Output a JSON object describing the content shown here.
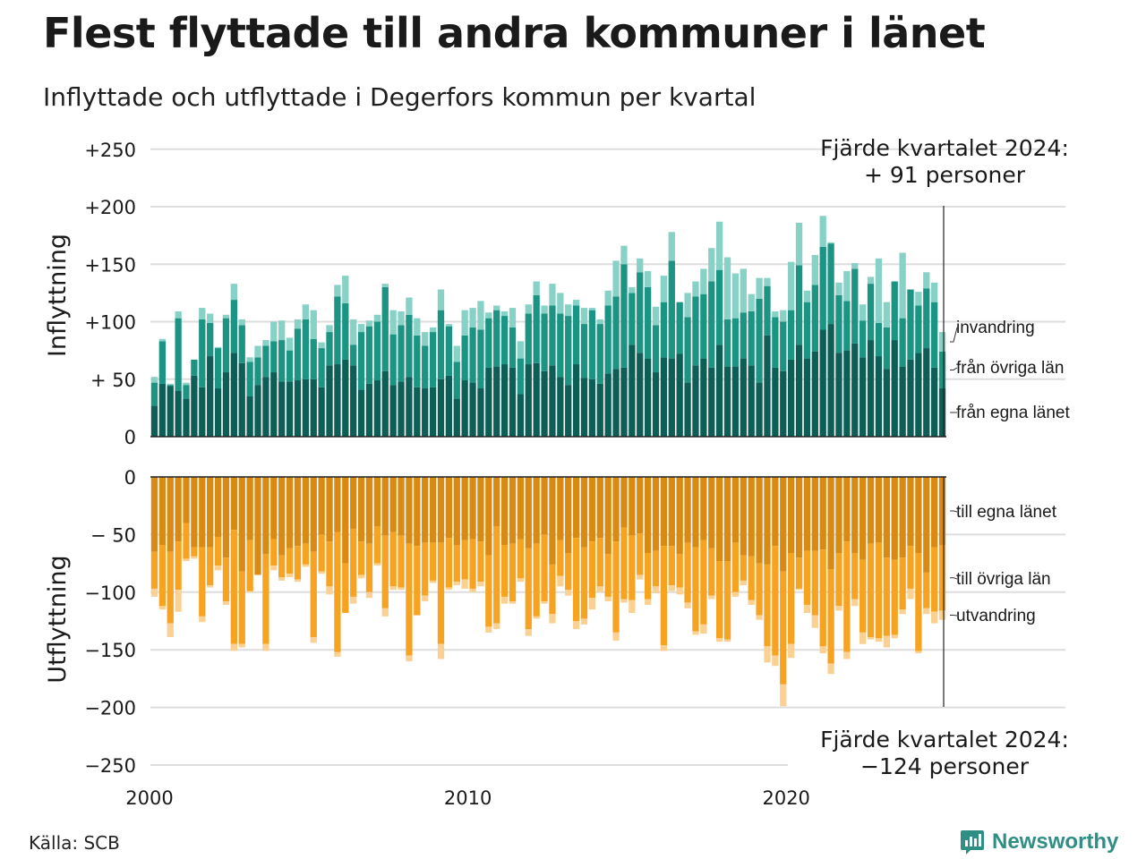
{
  "title": "Flest flyttade till andra kommuner i länet",
  "subtitle": "Inflyttade och utflyttade i Degerfors kommun per kvartal",
  "source": "Källa: SCB",
  "brand": "Newsworthy",
  "colors": {
    "in_own_county": "#0d5e57",
    "in_other_counties": "#1b9484",
    "in_immigration": "#88d1c6",
    "out_own_county": "#d98a12",
    "out_other_counties": "#f7a322",
    "out_emigration": "#fad192",
    "grid": "#dddddd",
    "brand": "#2f8f85"
  },
  "chart_data": {
    "type": "bar",
    "stacked": true,
    "x_start": "2000 Q1",
    "x_end": "2024 Q4",
    "x_ticks": [
      "2000",
      "2010",
      "2020"
    ],
    "top_panel": {
      "ylabel": "Inflyttning",
      "y_ticks": [
        "+250",
        "+200",
        "+150",
        "+100",
        "+ 50",
        "0"
      ],
      "ylim": [
        0,
        250
      ],
      "annotation_line1": "Fjärde kvartalet 2024:",
      "annotation_line2": "+ 91 personer",
      "series": [
        {
          "name": "från egna länet",
          "values": [
            27,
            46,
            44,
            40,
            33,
            53,
            43,
            70,
            42,
            56,
            73,
            64,
            35,
            45,
            52,
            56,
            48,
            48,
            49,
            50,
            50,
            43,
            62,
            63,
            67,
            62,
            41,
            46,
            49,
            57,
            45,
            48,
            52,
            43,
            42,
            43,
            50,
            53,
            33,
            49,
            47,
            42,
            60,
            61,
            63,
            60,
            37,
            63,
            64,
            57,
            62,
            52,
            45,
            63,
            51,
            50,
            46,
            55,
            59,
            60,
            80,
            73,
            68,
            56,
            69,
            68,
            72,
            47,
            62,
            68,
            60,
            80,
            61,
            61,
            68,
            62,
            47,
            88,
            60,
            57,
            67,
            80,
            68,
            74,
            93,
            98,
            73,
            75,
            81,
            69,
            84,
            70,
            59,
            84,
            61,
            67,
            73,
            77,
            60,
            42
          ]
        },
        {
          "name": "från övriga län",
          "values": [
            47,
            83,
            45,
            103,
            45,
            67,
            102,
            99,
            77,
            103,
            119,
            97,
            65,
            69,
            79,
            83,
            84,
            75,
            94,
            102,
            85,
            77,
            91,
            122,
            116,
            80,
            91,
            96,
            100,
            130,
            89,
            97,
            106,
            88,
            79,
            91,
            110,
            96,
            65,
            88,
            95,
            93,
            103,
            110,
            105,
            95,
            68,
            107,
            123,
            107,
            114,
            107,
            105,
            114,
            98,
            110,
            98,
            114,
            122,
            150,
            125,
            143,
            130,
            97,
            117,
            153,
            117,
            104,
            122,
            124,
            135,
            145,
            102,
            103,
            108,
            109,
            120,
            131,
            104,
            100,
            110,
            149,
            117,
            132,
            165,
            168,
            123,
            118,
            146,
            101,
            133,
            99,
            95,
            135,
            103,
            128,
            114,
            129,
            117,
            74
          ]
        },
        {
          "name": "invandring",
          "values": [
            52,
            85,
            46,
            109,
            47,
            67,
            112,
            107,
            78,
            106,
            133,
            102,
            69,
            79,
            84,
            100,
            101,
            86,
            102,
            115,
            110,
            82,
            97,
            132,
            140,
            102,
            98,
            101,
            106,
            133,
            110,
            109,
            121,
            103,
            91,
            95,
            128,
            98,
            79,
            110,
            112,
            118,
            108,
            114,
            109,
            112,
            83,
            115,
            135,
            114,
            133,
            125,
            115,
            119,
            112,
            112,
            102,
            127,
            153,
            166,
            130,
            155,
            144,
            113,
            140,
            178,
            113,
            125,
            135,
            146,
            164,
            187,
            156,
            142,
            146,
            124,
            138,
            138,
            109,
            110,
            152,
            186,
            127,
            158,
            192,
            169,
            134,
            144,
            151,
            115,
            139,
            155,
            117,
            135,
            160,
            117,
            126,
            143,
            134,
            91
          ]
        }
      ]
    },
    "bottom_panel": {
      "ylabel": "Utflyttning",
      "y_ticks": [
        "0",
        "− 50",
        "−100",
        "−150",
        "−200",
        "−250"
      ],
      "ylim": [
        -250,
        0
      ],
      "annotation_line1": "Fjärde kvartalet 2024:",
      "annotation_line2": "−124 personer",
      "series": [
        {
          "name": "till egna länet",
          "values": [
            -65,
            -59,
            -65,
            -56,
            -40,
            -61,
            -61,
            -61,
            -52,
            -70,
            -46,
            -82,
            -55,
            -85,
            -67,
            -54,
            -68,
            -62,
            -60,
            -58,
            -65,
            -50,
            -56,
            -48,
            -75,
            -45,
            -56,
            -58,
            -43,
            -51,
            -48,
            -51,
            -58,
            -60,
            -57,
            -57,
            -57,
            -53,
            -59,
            -55,
            -54,
            -56,
            -68,
            -43,
            -59,
            -58,
            -54,
            -62,
            -58,
            -50,
            -76,
            -55,
            -66,
            -53,
            -61,
            -56,
            -53,
            -67,
            -56,
            -44,
            -51,
            -49,
            -66,
            -64,
            -60,
            -60,
            -67,
            -57,
            -61,
            -55,
            -62,
            -73,
            -73,
            -57,
            -68,
            -69,
            -75,
            -76,
            -60,
            -82,
            -66,
            -70,
            -64,
            -64,
            -63,
            -80,
            -66,
            -56,
            -66,
            -72,
            -58,
            -57,
            -70,
            -72,
            -70,
            -60,
            -66,
            -83,
            -61,
            -59
          ]
        },
        {
          "name": "till övriga län",
          "values": [
            -97,
            -112,
            -127,
            -98,
            -71,
            -69,
            -121,
            -94,
            -77,
            -108,
            -145,
            -145,
            -99,
            -80,
            -145,
            -77,
            -87,
            -84,
            -89,
            -76,
            -139,
            -82,
            -95,
            -152,
            -118,
            -104,
            -85,
            -100,
            -75,
            -114,
            -95,
            -96,
            -155,
            -120,
            -103,
            -90,
            -145,
            -96,
            -91,
            -89,
            -97,
            -91,
            -130,
            -127,
            -104,
            -108,
            -88,
            -132,
            -121,
            -108,
            -119,
            -86,
            -98,
            -125,
            -123,
            -105,
            -95,
            -104,
            -135,
            -106,
            -107,
            -85,
            -106,
            -95,
            -146,
            -94,
            -96,
            -109,
            -134,
            -128,
            -103,
            -140,
            -141,
            -100,
            -90,
            -107,
            -120,
            -147,
            -155,
            -180,
            -145,
            -97,
            -111,
            -120,
            -147,
            -162,
            -112,
            -152,
            -106,
            -135,
            -139,
            -140,
            -138,
            -137,
            -115,
            -97,
            -151,
            -114,
            -117,
            -116
          ]
        },
        {
          "name": "utvandring",
          "values": [
            -104,
            -115,
            -139,
            -117,
            -73,
            -71,
            -126,
            -96,
            -81,
            -111,
            -151,
            -148,
            -100,
            -82,
            -151,
            -81,
            -90,
            -87,
            -91,
            -78,
            -144,
            -84,
            -102,
            -156,
            -118,
            -110,
            -88,
            -105,
            -77,
            -121,
            -98,
            -98,
            -160,
            -120,
            -108,
            -92,
            -158,
            -98,
            -94,
            -97,
            -100,
            -95,
            -135,
            -132,
            -110,
            -110,
            -91,
            -138,
            -123,
            -110,
            -127,
            -95,
            -103,
            -132,
            -128,
            -115,
            -100,
            -108,
            -142,
            -109,
            -118,
            -89,
            -111,
            -101,
            -151,
            -99,
            -102,
            -114,
            -137,
            -136,
            -106,
            -143,
            -143,
            -104,
            -94,
            -111,
            -124,
            -161,
            -164,
            -199,
            -157,
            -98,
            -118,
            -131,
            -153,
            -171,
            -116,
            -158,
            -112,
            -145,
            -141,
            -143,
            -148,
            -140,
            -119,
            -106,
            -153,
            -119,
            -127,
            -124
          ]
        }
      ]
    }
  }
}
